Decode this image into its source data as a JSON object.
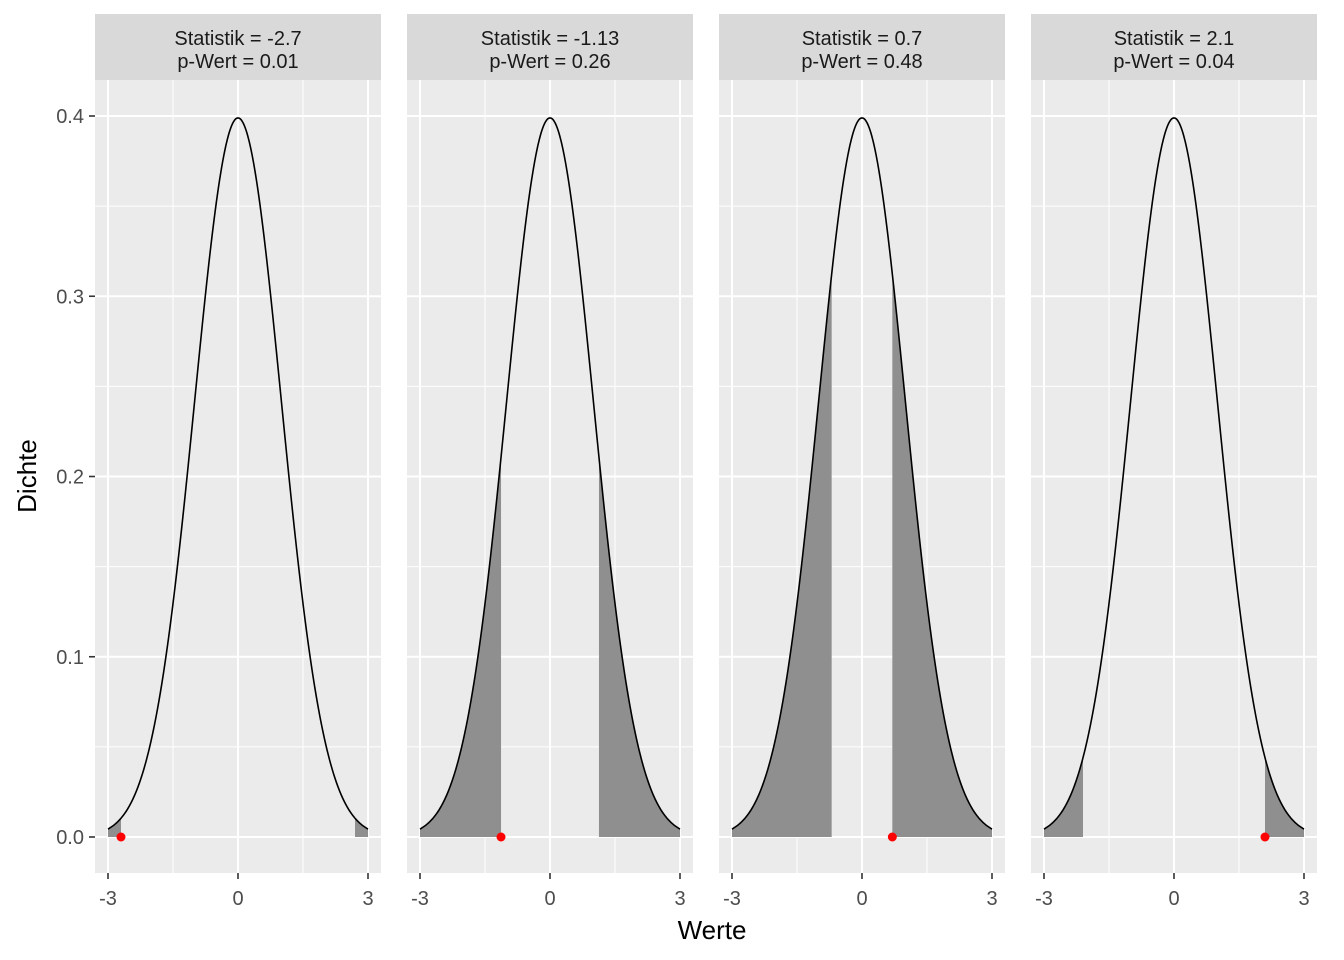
{
  "chart_data": {
    "type": "area",
    "xlabel": "Werte",
    "ylabel": "Dichte",
    "xlim": [
      -3,
      3
    ],
    "ylim": [
      0,
      0.4
    ],
    "x_ticks": [
      -3,
      0,
      3
    ],
    "x_tick_labels": [
      "-3",
      "0",
      "3"
    ],
    "y_ticks": [
      0.0,
      0.1,
      0.2,
      0.3,
      0.4
    ],
    "y_tick_labels": [
      "0.0",
      "0.1",
      "0.2",
      "0.3",
      "0.4"
    ],
    "grid": true,
    "curve": "standard normal density",
    "panels": [
      {
        "statistic": -2.7,
        "p_value": 0.01,
        "strip_line1": "Statistik =  -2.7",
        "strip_line2": "p-Wert =  0.01"
      },
      {
        "statistic": -1.13,
        "p_value": 0.26,
        "strip_line1": "Statistik =  -1.13",
        "strip_line2": "p-Wert =  0.26"
      },
      {
        "statistic": 0.7,
        "p_value": 0.48,
        "strip_line1": "Statistik =  0.7",
        "strip_line2": "p-Wert =  0.48"
      },
      {
        "statistic": 2.1,
        "p_value": 0.04,
        "strip_line1": "Statistik =  2.1",
        "strip_line2": "p-Wert =  0.04"
      }
    ]
  },
  "colors": {
    "panel_background": "#ebebeb",
    "strip_background": "#d9d9d9",
    "grid_major": "#ffffff",
    "shaded_area": "#8f8f8f",
    "curve": "#000000",
    "point": "#ff0000"
  }
}
